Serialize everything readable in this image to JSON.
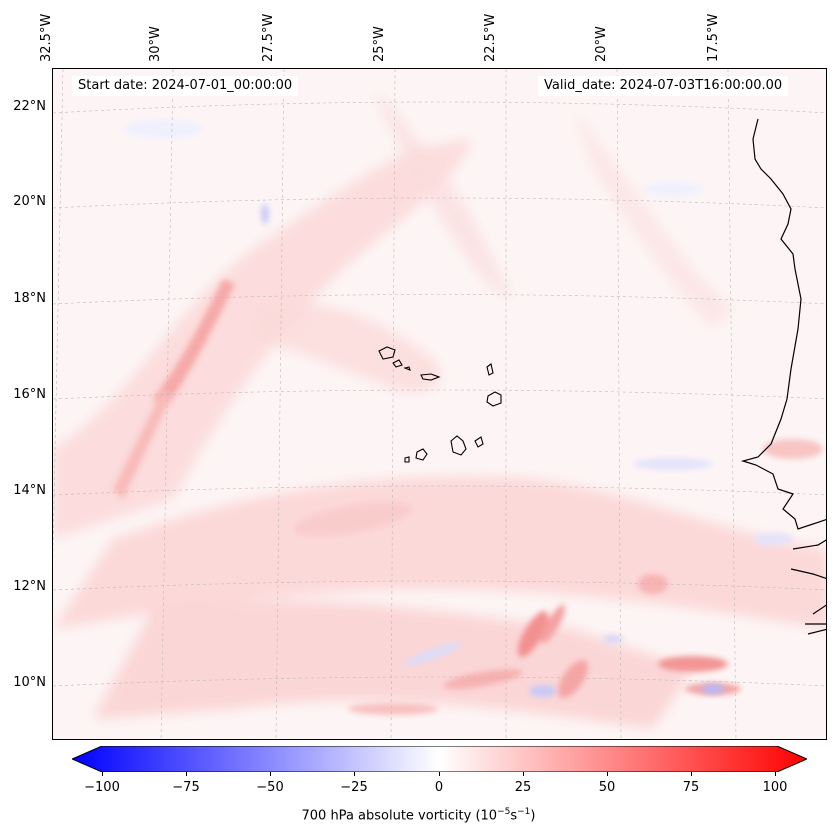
{
  "map": {
    "start_date": "Start date: 2024-07-01_00:00:00",
    "valid_date": "Valid_date: 2024-07-03T16:00:00.00",
    "lon_labels": [
      "32.5°W",
      "30°W",
      "27.5°W",
      "25°W",
      "22.5°W",
      "20°W",
      "17.5°W"
    ],
    "lat_labels": [
      "22°N",
      "20°N",
      "18°N",
      "16°N",
      "14°N",
      "12°N",
      "10°N"
    ],
    "field": "700 hPa absolute vorticity",
    "colors": {
      "negative": "#0000ff",
      "zero": "#ffffff",
      "positive": "#ff0000",
      "coast": "#000000"
    }
  },
  "colorbar": {
    "ticks": [
      "−100",
      "−75",
      "−50",
      "−25",
      "0",
      "25",
      "50",
      "75",
      "100"
    ],
    "range": [
      -100,
      100
    ],
    "label_main": "700 hPa absolute vorticity (10",
    "label_exp1": "−5",
    "label_mid": "s",
    "label_exp2": "−1",
    "label_end": ")"
  }
}
